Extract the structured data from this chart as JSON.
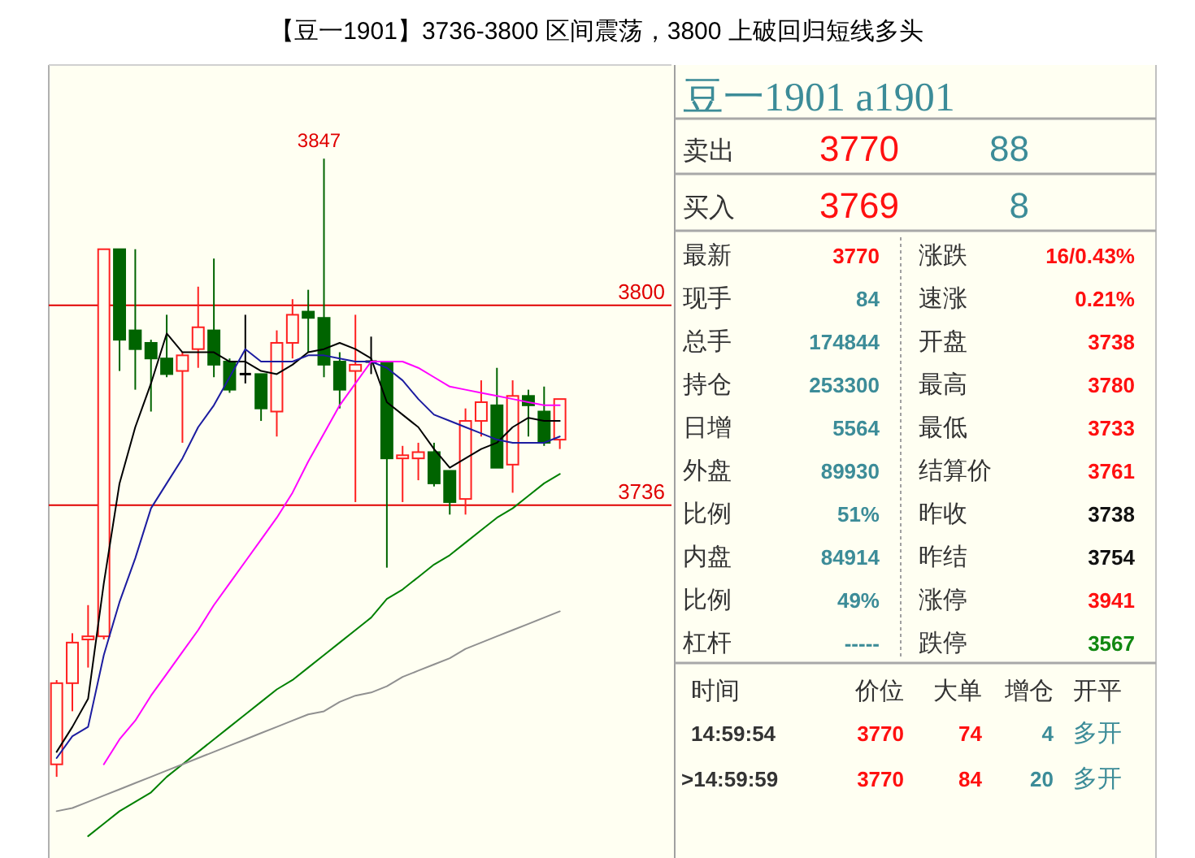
{
  "chart_data": [
    {
      "type": "candlestick",
      "title": "【豆一1901】3736-3800 区间震荡，3800 上破回归短线多头",
      "categories": [
        null,
        null,
        null,
        null,
        null,
        null,
        null,
        null,
        null,
        null,
        null,
        null,
        null,
        null,
        null,
        null,
        null,
        null,
        null,
        null,
        null,
        null,
        null,
        null,
        null,
        null,
        null,
        null,
        null,
        null,
        null,
        null,
        null
      ],
      "ohlc": [
        [
          3653,
          3680,
          3649,
          3679
        ],
        [
          3679,
          3695,
          3670,
          3692
        ],
        [
          3693,
          3704,
          3684,
          3694
        ],
        [
          3694,
          3818,
          3693,
          3818
        ],
        [
          3818,
          3818,
          3779,
          3789
        ],
        [
          3792,
          3818,
          3773,
          3786
        ],
        [
          3788,
          3789,
          3766,
          3783
        ],
        [
          3783,
          3797,
          3777,
          3778
        ],
        [
          3779,
          3785,
          3756,
          3784
        ],
        [
          3786,
          3806,
          3780,
          3793
        ],
        [
          3792,
          3815,
          3777,
          3781
        ],
        [
          3782,
          3783,
          3772,
          3773
        ],
        [
          3778,
          3797,
          3775,
          3778
        ],
        [
          3778,
          3778,
          3763,
          3767
        ],
        [
          3766,
          3792,
          3758,
          3788
        ],
        [
          3788,
          3802,
          3783,
          3797
        ],
        [
          3798,
          3805,
          3785,
          3796
        ],
        [
          3796,
          3847,
          3777,
          3781
        ],
        [
          3782,
          3785,
          3767,
          3773
        ],
        [
          3779,
          3797,
          3737,
          3781
        ],
        [
          3782,
          3790,
          3778,
          3782
        ],
        [
          3782,
          3782,
          3716,
          3751
        ],
        [
          3751,
          3755,
          3737,
          3752
        ],
        [
          3751,
          3756,
          3744,
          3753
        ],
        [
          3753,
          3756,
          3742,
          3743
        ],
        [
          3747,
          3747,
          3733,
          3737
        ],
        [
          3738,
          3767,
          3733,
          3763
        ],
        [
          3763,
          3776,
          3758,
          3769
        ],
        [
          3768,
          3780,
          3748,
          3748
        ],
        [
          3749,
          3776,
          3740,
          3771
        ],
        [
          3771,
          3773,
          3758,
          3768
        ],
        [
          3766,
          3774,
          3755,
          3756
        ],
        [
          3757,
          3770,
          3754,
          3770
        ]
      ],
      "series": [
        {
          "type": "line",
          "color": "#000000",
          "values": [
            3657,
            3665,
            3674,
            3711,
            3743,
            3761,
            3775,
            3791,
            3785,
            3785,
            3785,
            3782,
            3782,
            3779,
            3778,
            3781,
            3785,
            3786,
            3788,
            3786,
            3783,
            3769,
            3765,
            3761,
            3754,
            3748,
            3751,
            3754,
            3756,
            3761,
            3764,
            3763,
            3763
          ]
        },
        {
          "type": "line",
          "color": "#1c1ca0",
          "values": [
            3655,
            3662,
            3665,
            3688,
            3705,
            3719,
            3735,
            3743,
            3751,
            3761,
            3768,
            3777,
            3786,
            3782,
            3782,
            3782,
            3784,
            3784,
            3783,
            3782,
            3782,
            3780,
            3776,
            3770,
            3765,
            3763,
            3761,
            3759,
            3757,
            3756,
            3756,
            3756,
            3758
          ]
        },
        {
          "type": "line",
          "color": "#ff00ff",
          "values": [
            null,
            null,
            null,
            3653,
            3661,
            3667,
            3675,
            3682,
            3689,
            3696,
            3704,
            3711,
            3718,
            3725,
            3732,
            3740,
            3750,
            3759,
            3768,
            3775,
            3782,
            3782,
            3782,
            3780,
            3777,
            3774,
            3773,
            3772,
            3771,
            3770,
            3769,
            3768,
            3768
          ]
        },
        {
          "type": "line",
          "color": "#008000",
          "values": [
            null,
            null,
            3630,
            3634,
            3638,
            3641,
            3644,
            3649,
            3653,
            3657,
            3661,
            3665,
            3669,
            3673,
            3677,
            3680,
            3684,
            3688,
            3692,
            3696,
            3700,
            3706,
            3709,
            3713,
            3717,
            3720,
            3724,
            3728,
            3732,
            3735,
            3739,
            3743,
            3746
          ]
        },
        {
          "type": "line",
          "color": "#909090",
          "values": [
            3638,
            3639,
            3641,
            3643,
            3645,
            3647,
            3649,
            3651,
            3653,
            3655,
            3657,
            3659,
            3661,
            3663,
            3665,
            3667,
            3669,
            3670,
            3673,
            3675,
            3676,
            3678,
            3681,
            3683,
            3685,
            3687,
            3690,
            3692,
            3694,
            3696,
            3698,
            3700,
            3702
          ]
        }
      ],
      "ylim": [
        3623,
        3877
      ],
      "ref_lines": [
        {
          "axis": "y",
          "value": 3800,
          "label": "3800",
          "color": "#e00000"
        },
        {
          "axis": "y",
          "value": 3736,
          "label": "3736",
          "color": "#e00000"
        }
      ],
      "annotations": [
        {
          "text": "3847",
          "y": 3847
        }
      ]
    },
    {
      "type": "other",
      "title": "豆一1901  a1901",
      "annotations": [
        "卖出",
        "3770",
        "88",
        "买入",
        "3769",
        "8",
        "最新",
        "3770",
        "涨跌",
        "16/0.43%",
        "现手",
        "84",
        "速涨",
        "0.21%",
        "总手",
        "174844",
        "开盘",
        "3738",
        "持仓",
        "253300",
        "最高",
        "3780",
        "日增",
        "5564",
        "最低",
        "3733",
        "外盘",
        "89930",
        "结算价",
        "3761",
        "比例",
        "51%",
        "昨收",
        "3738",
        "内盘",
        "84914",
        "昨结",
        "3754",
        "比例",
        "49%",
        "涨停",
        "3941",
        "杠杆",
        "-----",
        "跌停",
        "3567",
        "时间",
        "价位",
        "大单",
        "增仓",
        "开平",
        "14:59:54",
        "3770",
        "74",
        "4",
        "多开",
        ">14:59:59",
        "3770",
        "84",
        "20",
        "多开"
      ]
    }
  ]
}
